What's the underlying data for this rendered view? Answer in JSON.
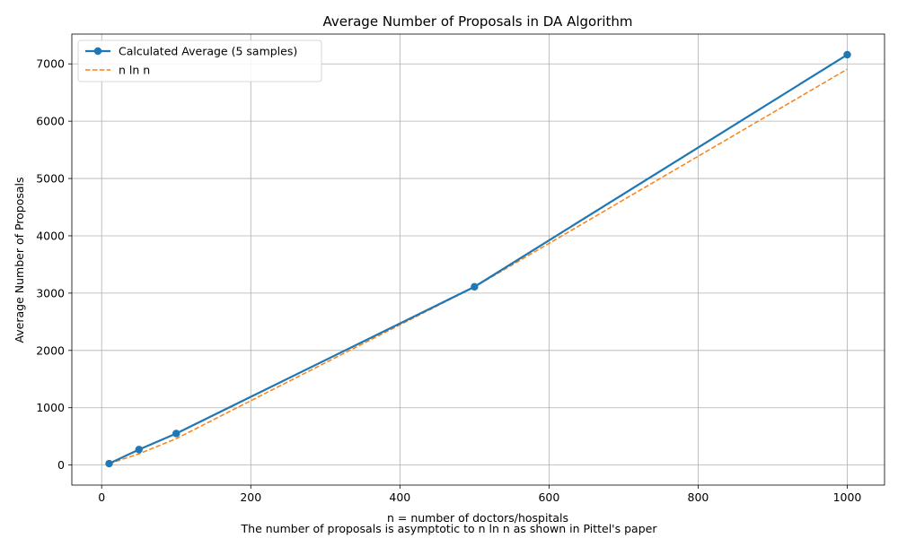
{
  "chart_data": {
    "type": "line",
    "title": "Average Number of Proposals in DA Algorithm",
    "xlabel": "n = number of doctors/hospitals",
    "ylabel": "Average Number of Proposals",
    "caption": "The number of proposals is asymptotic to n ln n as shown in Pittel's paper",
    "xlim": [
      -40,
      1050
    ],
    "ylim": [
      -350,
      7520
    ],
    "xticks": [
      0,
      200,
      400,
      600,
      800,
      1000
    ],
    "yticks": [
      0,
      1000,
      2000,
      3000,
      4000,
      5000,
      6000,
      7000
    ],
    "grid": true,
    "legend_position": "top-left",
    "series": [
      {
        "name": "Calculated Average (5 samples)",
        "style": "solid-markers",
        "color": "#1f77b4",
        "x": [
          10,
          50,
          100,
          500,
          1000
        ],
        "y": [
          25,
          270,
          550,
          3110,
          7160
        ]
      },
      {
        "name": "n ln n",
        "style": "dashed",
        "color": "#ff7f0e",
        "x": [
          10,
          50,
          100,
          500,
          1000
        ],
        "y": [
          23.03,
          195.6,
          460.5,
          3107.3,
          6907.8
        ]
      }
    ]
  }
}
